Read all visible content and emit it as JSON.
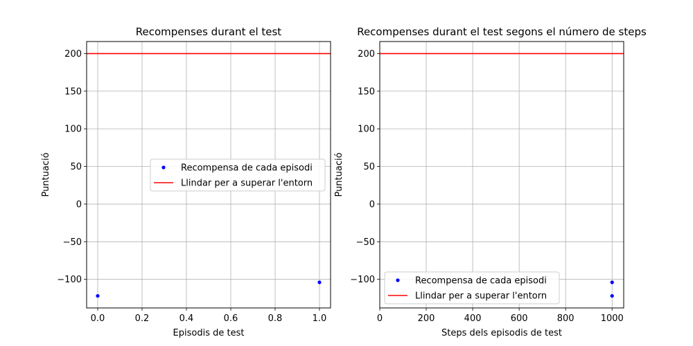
{
  "chart_data": [
    {
      "type": "scatter",
      "title": "Recompenses durant el test",
      "xlabel": "Episodis de test",
      "ylabel": "Puntuació",
      "xlim": [
        -0.05,
        1.05
      ],
      "ylim": [
        -138,
        216
      ],
      "xticks": [
        0.0,
        0.2,
        0.4,
        0.6,
        0.8,
        1.0
      ],
      "xtick_labels": [
        "0.0",
        "0.2",
        "0.4",
        "0.6",
        "0.8",
        "1.0"
      ],
      "yticks": [
        -100,
        -50,
        0,
        50,
        100,
        150,
        200
      ],
      "ytick_labels": [
        "−100",
        "−50",
        "0",
        "50",
        "100",
        "150",
        "200"
      ],
      "grid": true,
      "legend_position": "center-right",
      "series": [
        {
          "name": "Recompensa de cada episodi",
          "kind": "points",
          "color": "#0000ff",
          "x": [
            0.0,
            1.0
          ],
          "y": [
            -122,
            -104
          ]
        },
        {
          "name": "Llindar per a superar l'entorn",
          "kind": "hline",
          "color": "#ff0000",
          "y": 200
        }
      ]
    },
    {
      "type": "scatter",
      "title": "Recompenses durant el test segons el número de steps",
      "xlabel": "Steps dels episodis de test",
      "ylabel": "Puntuació",
      "xlim": [
        0,
        1050
      ],
      "ylim": [
        -138,
        216
      ],
      "xticks": [
        0,
        200,
        400,
        600,
        800,
        1000
      ],
      "xtick_labels": [
        "0",
        "200",
        "400",
        "600",
        "800",
        "1000"
      ],
      "yticks": [
        -100,
        -50,
        0,
        50,
        100,
        150,
        200
      ],
      "ytick_labels": [
        "−100",
        "−50",
        "0",
        "50",
        "100",
        "150",
        "200"
      ],
      "grid": true,
      "legend_position": "lower-left",
      "series": [
        {
          "name": "Recompensa de cada episodi",
          "kind": "points",
          "color": "#0000ff",
          "x": [
            1000,
            1000
          ],
          "y": [
            -122,
            -104
          ]
        },
        {
          "name": "Llindar per a superar l'entorn",
          "kind": "hline",
          "color": "#ff0000",
          "y": 200
        }
      ]
    }
  ]
}
